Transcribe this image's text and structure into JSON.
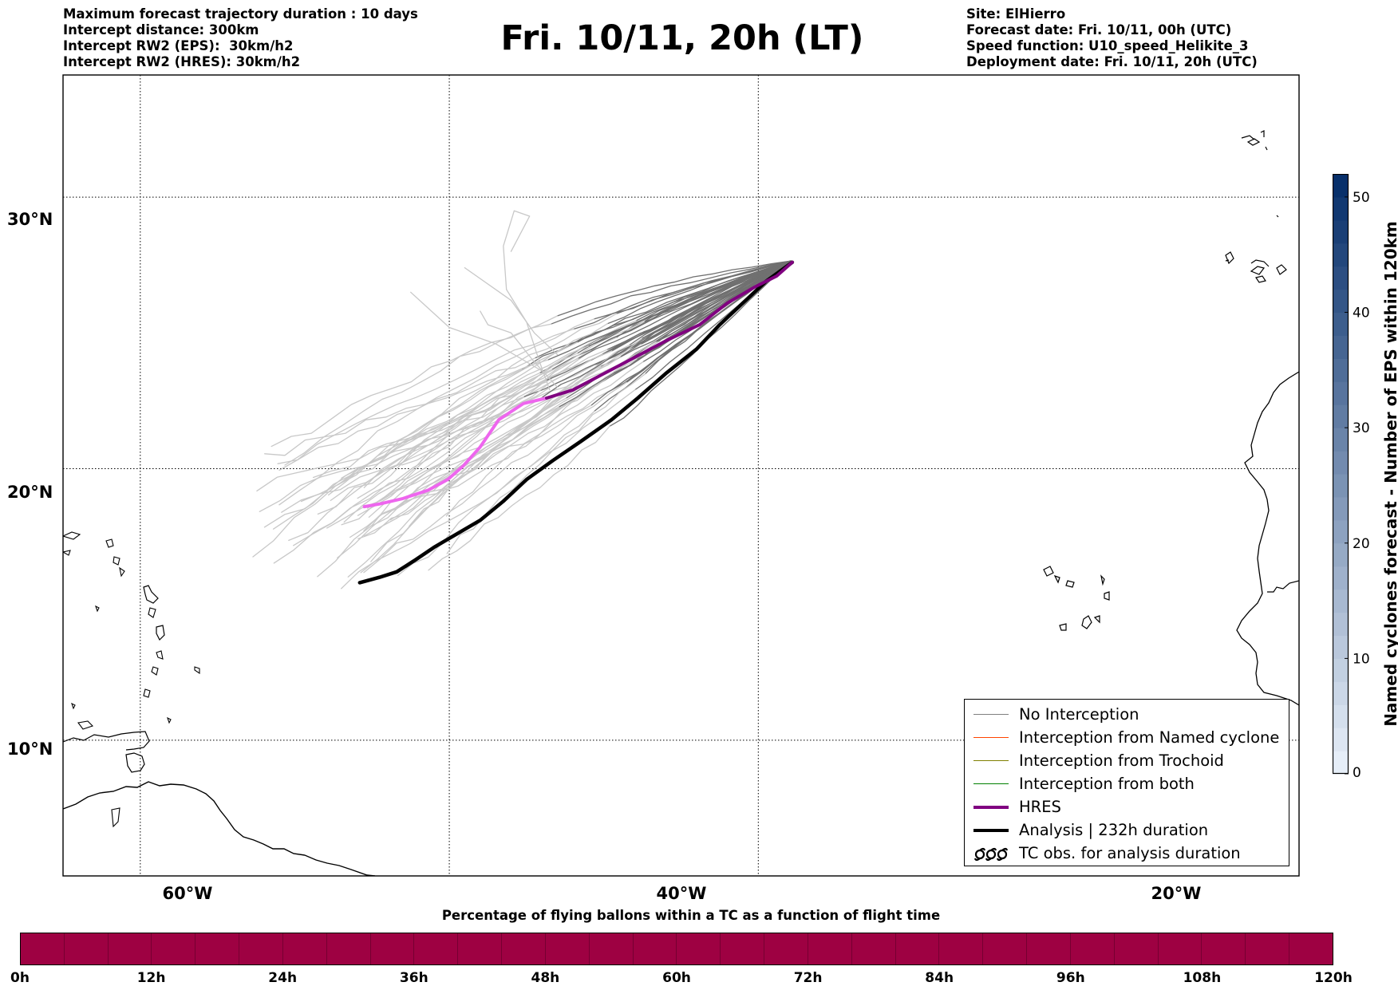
{
  "header_left": [
    "Maximum forecast trajectory duration : 10 days",
    "Intercept distance: 300km",
    "Intercept RW2 (EPS):  30km/h2",
    "Intercept RW2 (HRES): 30km/h2"
  ],
  "title": "Fri. 10/11, 20h (LT)",
  "header_right": [
    "Site: ElHierro",
    "Forecast date: Fri. 10/11, 00h (UTC)",
    "Speed function: U10_speed_Helikite_3",
    "Deployment date: Fri. 10/11, 20h (UTC)"
  ],
  "map": {
    "lon_range": [
      -65,
      15
    ],
    "lat_range": [
      5,
      34.5
    ],
    "lat_labels": [
      "30°N",
      "20°N",
      "10°N"
    ],
    "lon_labels": [
      "60°W",
      "40°W",
      "20°W"
    ],
    "grid": "dotted",
    "site_marker": "ElHierro"
  },
  "tracks": {
    "hres": {
      "color": "#800080",
      "far_color": "#ee66ee",
      "points": [
        [
          -17.8,
          27.6
        ],
        [
          -18.8,
          27.1
        ],
        [
          -20.2,
          26.7
        ],
        [
          -22.0,
          26.1
        ],
        [
          -23.8,
          25.3
        ],
        [
          -26.0,
          24.7
        ],
        [
          -28.0,
          24.1
        ],
        [
          -30.0,
          23.5
        ],
        [
          -32.0,
          22.9
        ],
        [
          -33.7,
          22.6
        ],
        [
          -35.2,
          22.4
        ],
        [
          -36.8,
          21.8
        ],
        [
          -38.0,
          20.8
        ],
        [
          -39.1,
          20.1
        ],
        [
          -40.1,
          19.6
        ],
        [
          -41.4,
          19.2
        ],
        [
          -43.0,
          18.9
        ],
        [
          -44.5,
          18.7
        ],
        [
          -45.5,
          18.6
        ]
      ],
      "split_index": 9
    },
    "analysis": {
      "color": "#000000",
      "points": [
        [
          -17.8,
          27.6
        ],
        [
          -19.5,
          26.9
        ],
        [
          -21.0,
          26.1
        ],
        [
          -22.5,
          25.3
        ],
        [
          -24.0,
          24.4
        ],
        [
          -26.0,
          23.5
        ],
        [
          -27.8,
          22.6
        ],
        [
          -29.5,
          21.8
        ],
        [
          -31.5,
          21.0
        ],
        [
          -33.3,
          20.3
        ],
        [
          -35.0,
          19.6
        ],
        [
          -36.5,
          18.8
        ],
        [
          -38.0,
          18.1
        ],
        [
          -39.5,
          17.6
        ],
        [
          -41.0,
          17.1
        ],
        [
          -42.3,
          16.6
        ],
        [
          -43.4,
          16.2
        ],
        [
          -44.5,
          16.0
        ],
        [
          -45.8,
          15.8
        ]
      ]
    },
    "eps_colors": {
      "near": "#707070",
      "far": "#c8c8c8"
    }
  },
  "legend": [
    {
      "label": "No Interception",
      "color": "#808080",
      "style": "thin"
    },
    {
      "label": "Interception from Named cyclone",
      "color": "#ff4400",
      "style": "thin"
    },
    {
      "label": "Interception from Trochoid",
      "color": "#808000",
      "style": "thin"
    },
    {
      "label": "Interception from both",
      "color": "#008000",
      "style": "thin"
    },
    {
      "label": "HRES",
      "color": "#800080",
      "style": "thick"
    },
    {
      "label": "Analysis | 232h duration",
      "color": "#000000",
      "style": "thick"
    },
    {
      "label": "TC obs. for analysis duration",
      "color": "#000000",
      "style": "tc-symbols"
    }
  ],
  "colorbar_right": {
    "label": "Named cyclones forecast - Number of EPS within 120km",
    "min": 0,
    "max": 52,
    "ticks": [
      "0",
      "10",
      "20",
      "30",
      "40",
      "50"
    ],
    "color_low": "#e6eef8",
    "color_high": "#08306b"
  },
  "colorbar_bottom": {
    "title": "Percentage of flying ballons within a TC as a function of flight time",
    "color": "#9e0142",
    "segments": 30,
    "ticks": [
      "0h",
      "12h",
      "24h",
      "36h",
      "48h",
      "60h",
      "72h",
      "84h",
      "96h",
      "108h",
      "120h"
    ]
  }
}
